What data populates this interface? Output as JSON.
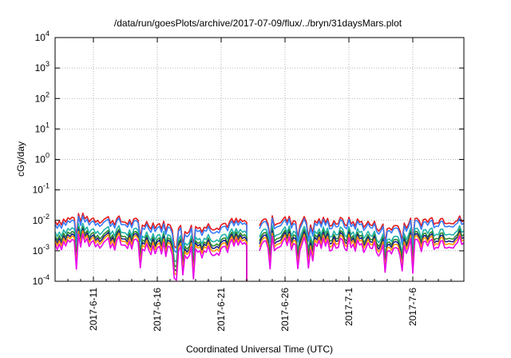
{
  "chart_data": {
    "type": "line",
    "title": "/data/run/goesPlots/archive/2017-07-09/flux/../bryn/31daysMars.plot",
    "xlabel": "Coordinated Universal Time (UTC)",
    "ylabel": "cGy/day",
    "yscale": "log",
    "ylim": [
      0.0001,
      10000
    ],
    "y_ticks": [
      {
        "mant": "10",
        "exp": "-4",
        "value": 0.0001
      },
      {
        "mant": "10",
        "exp": "-3",
        "value": 0.001
      },
      {
        "mant": "10",
        "exp": "-2",
        "value": 0.01
      },
      {
        "mant": "10",
        "exp": "-1",
        "value": 0.1
      },
      {
        "mant": "10",
        "exp": "0",
        "value": 1
      },
      {
        "mant": "10",
        "exp": "1",
        "value": 10
      },
      {
        "mant": "10",
        "exp": "2",
        "value": 100
      },
      {
        "mant": "10",
        "exp": "3",
        "value": 1000
      },
      {
        "mant": "10",
        "exp": "4",
        "value": 10000
      }
    ],
    "xlim": [
      "2017-06-08",
      "2017-07-10"
    ],
    "x_ticks": [
      {
        "label": "2017-6-11",
        "date": "2017-06-11"
      },
      {
        "label": "2017-6-16",
        "date": "2017-06-16"
      },
      {
        "label": "2017-6-21",
        "date": "2017-06-21"
      },
      {
        "label": "2017-6-26",
        "date": "2017-06-26"
      },
      {
        "label": "2017-7-1",
        "date": "2017-07-01"
      },
      {
        "label": "2017-7-6",
        "date": "2017-07-06"
      }
    ],
    "grid": true,
    "legend": "none",
    "x": [
      "2017-06-08",
      "2017-06-10",
      "2017-06-12",
      "2017-06-14",
      "2017-06-16",
      "2017-06-18",
      "2017-06-20",
      "2017-06-22",
      "2017-06-24",
      "2017-06-26",
      "2017-06-28",
      "2017-06-30",
      "2017-07-02",
      "2017-07-04",
      "2017-07-06",
      "2017-07-08",
      "2017-07-10"
    ],
    "series": [
      {
        "color": "#e41a1c",
        "values": [
          0.0095,
          0.012,
          0.011,
          0.0085,
          0.0075,
          0.005,
          0.0065,
          0.0085,
          0.0095,
          0.01,
          0.0095,
          0.009,
          0.0085,
          0.0055,
          0.0085,
          0.0115,
          0.01
        ]
      },
      {
        "color": "#377eff",
        "values": [
          0.0075,
          0.0095,
          0.009,
          0.007,
          0.006,
          0.004,
          0.0052,
          0.0068,
          0.0078,
          0.008,
          0.0078,
          0.0074,
          0.007,
          0.0045,
          0.007,
          0.0092,
          0.0082
        ]
      },
      {
        "color": "#20b2aa",
        "values": [
          0.0042,
          0.0052,
          0.005,
          0.0038,
          0.0033,
          0.0022,
          0.0028,
          0.0037,
          0.0043,
          0.0045,
          0.0043,
          0.0041,
          0.0039,
          0.0024,
          0.0038,
          0.0051,
          0.0046
        ]
      },
      {
        "color": "#2e8b2e",
        "values": [
          0.0032,
          0.0039,
          0.0037,
          0.0029,
          0.0025,
          0.0017,
          0.0021,
          0.0028,
          0.0033,
          0.0034,
          0.0033,
          0.0031,
          0.0029,
          0.0019,
          0.0029,
          0.0038,
          0.0035
        ]
      },
      {
        "color": "#1c1c8c",
        "values": [
          0.0026,
          0.0032,
          0.0031,
          0.0024,
          0.0021,
          0.0014,
          0.0018,
          0.0023,
          0.0027,
          0.0028,
          0.0027,
          0.0026,
          0.0024,
          0.0016,
          0.0024,
          0.0032,
          0.0029
        ]
      },
      {
        "color": "#ff9900",
        "values": [
          0.0022,
          0.0027,
          0.0026,
          0.002,
          0.0017,
          0.0012,
          0.0015,
          0.0019,
          0.0022,
          0.0023,
          0.0022,
          0.0021,
          0.002,
          0.0013,
          0.002,
          0.0027,
          0.0024
        ]
      },
      {
        "color": "#e800e8",
        "values": [
          0.0017,
          0.0021,
          0.002,
          0.0015,
          0.0013,
          0.0009,
          0.0011,
          0.0015,
          0.0017,
          0.0018,
          0.0017,
          0.0016,
          0.0015,
          0.001,
          0.0015,
          0.0021,
          0.0019
        ]
      }
    ],
    "gap": [
      "2017-06-23",
      "2017-06-24"
    ]
  }
}
